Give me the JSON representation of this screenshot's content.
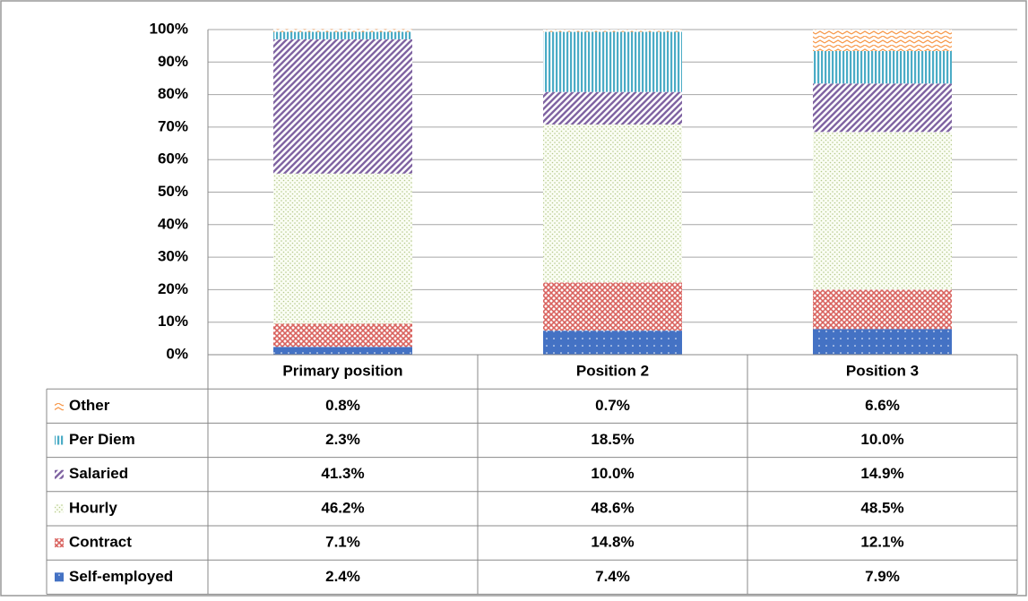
{
  "chart_data": {
    "type": "stacked_bar_percent",
    "categories": [
      "Primary position",
      "Position 2",
      "Position 3"
    ],
    "series": [
      {
        "name": "Self-employed",
        "color": "#4472c4",
        "pattern": "dots-light",
        "values": [
          2.4,
          7.4,
          7.9
        ],
        "value_labels": [
          "2.4%",
          "7.4%",
          "7.9%"
        ]
      },
      {
        "name": "Contract",
        "color": "#d9625e",
        "pattern": "cross",
        "values": [
          7.1,
          14.8,
          12.1
        ],
        "value_labels": [
          "7.1%",
          "14.8%",
          "12.1%"
        ]
      },
      {
        "name": "Hourly",
        "color": "#b5c98a",
        "pattern": "dots",
        "values": [
          46.2,
          48.6,
          48.5
        ],
        "value_labels": [
          "46.2%",
          "48.6%",
          "48.5%"
        ]
      },
      {
        "name": "Salaried",
        "color": "#8064a2",
        "pattern": "diagonal",
        "values": [
          41.3,
          10.0,
          14.9
        ],
        "value_labels": [
          "41.3%",
          "10.0%",
          "14.9%"
        ]
      },
      {
        "name": "Per Diem",
        "color": "#4bacc6",
        "pattern": "vertical",
        "values": [
          2.3,
          18.5,
          10.0
        ],
        "value_labels": [
          "2.3%",
          "18.5%",
          "10.0%"
        ]
      },
      {
        "name": "Other",
        "color": "#f79646",
        "pattern": "zigzag",
        "values": [
          0.8,
          0.7,
          6.6
        ],
        "value_labels": [
          "0.8%",
          "0.7%",
          "6.6%"
        ]
      }
    ],
    "ylim": [
      0,
      100
    ],
    "yticks": [
      {
        "value": 0,
        "label": "0%"
      },
      {
        "value": 10,
        "label": "10%"
      },
      {
        "value": 20,
        "label": "20%"
      },
      {
        "value": 30,
        "label": "30%"
      },
      {
        "value": 40,
        "label": "40%"
      },
      {
        "value": 50,
        "label": "50%"
      },
      {
        "value": 60,
        "label": "60%"
      },
      {
        "value": 70,
        "label": "70%"
      },
      {
        "value": 80,
        "label": "80%"
      },
      {
        "value": 90,
        "label": "90%"
      },
      {
        "value": 100,
        "label": "100%"
      }
    ],
    "grid": true,
    "data_table": true
  }
}
